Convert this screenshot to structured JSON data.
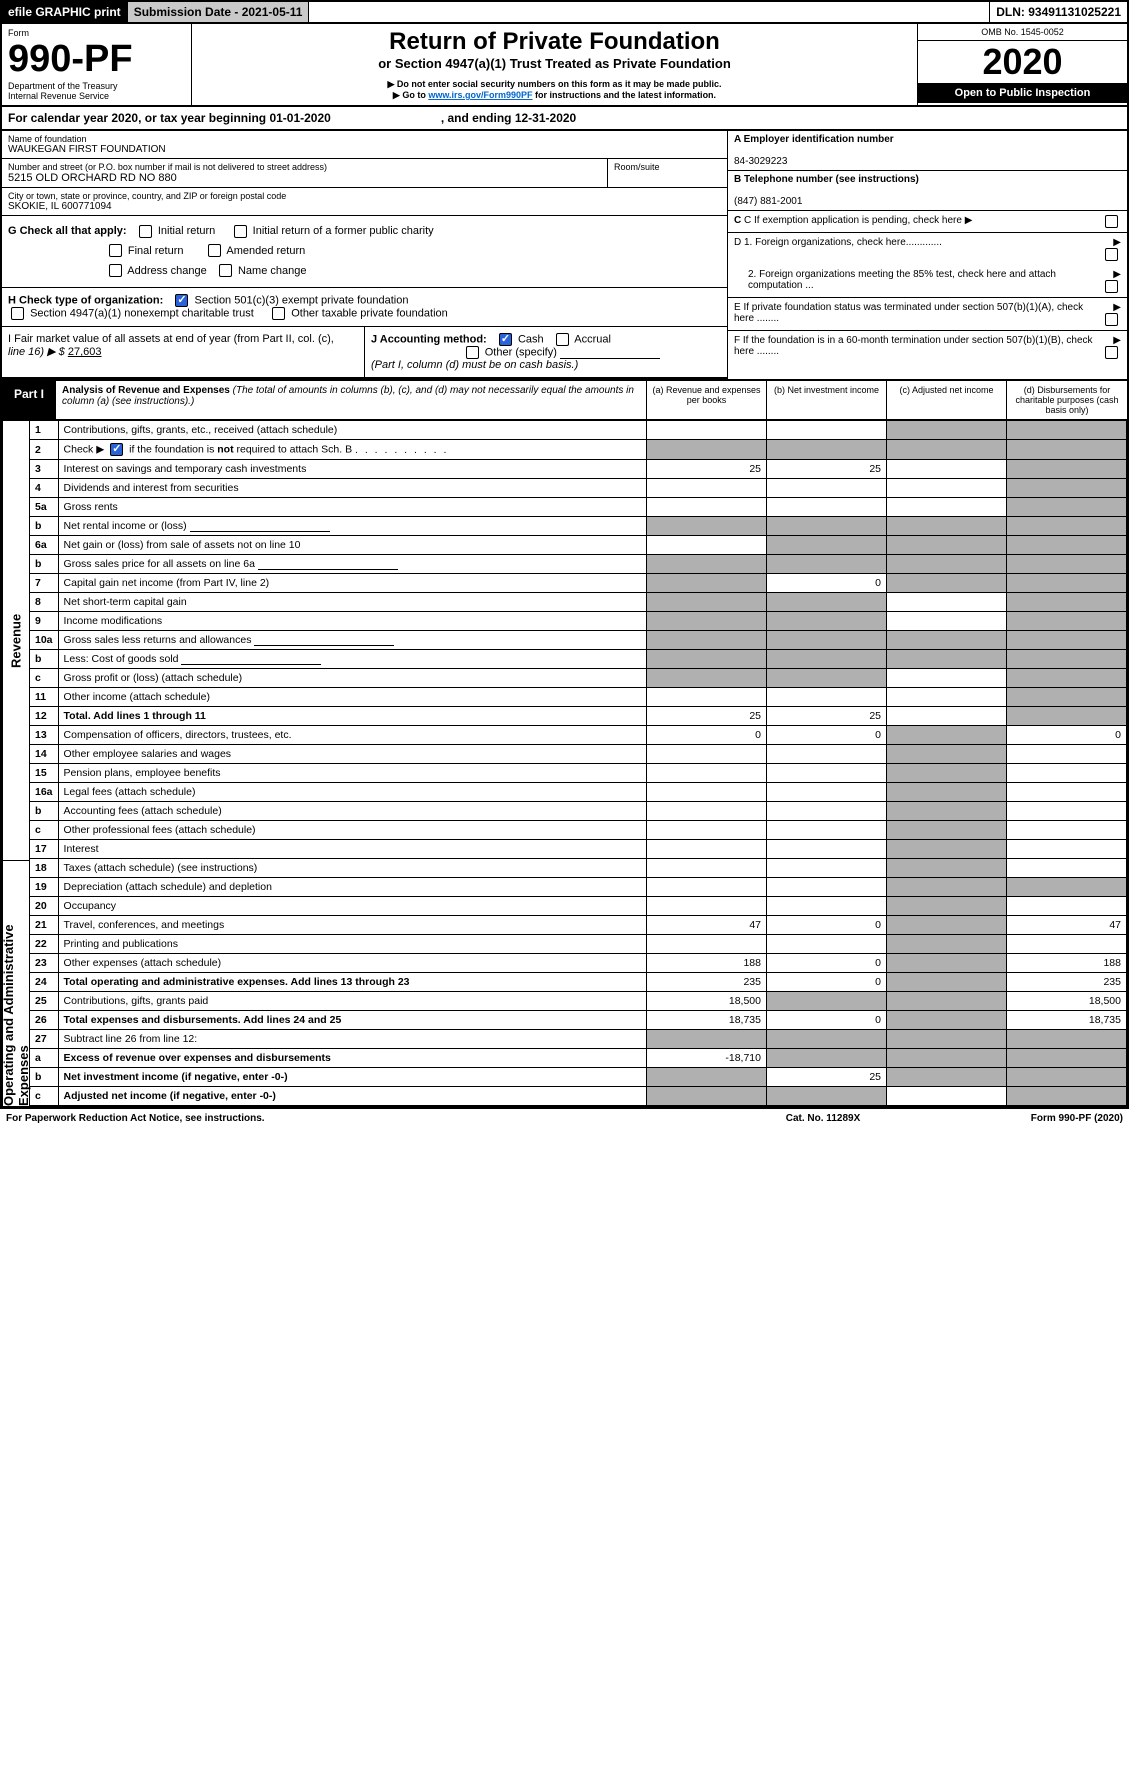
{
  "topbar": {
    "efile": "efile GRAPHIC print",
    "submission_label": "Submission Date - 2021-05-11",
    "dln": "DLN: 93491131025221"
  },
  "header": {
    "form_word": "Form",
    "form_no": "990-PF",
    "dept": "Department of the Treasury",
    "irs": "Internal Revenue Service",
    "title": "Return of Private Foundation",
    "subtitle": "or Section 4947(a)(1) Trust Treated as Private Foundation",
    "note1": "▶ Do not enter social security numbers on this form as it may be made public.",
    "note2_pre": "▶ Go to ",
    "note2_link": "www.irs.gov/Form990PF",
    "note2_post": " for instructions and the latest information.",
    "omb": "OMB No. 1545-0052",
    "year": "2020",
    "openpub": "Open to Public Inspection"
  },
  "calyear": {
    "text": "For calendar year 2020, or tax year beginning 01-01-2020",
    "ending": ", and ending 12-31-2020"
  },
  "info": {
    "name_label": "Name of foundation",
    "name": "WAUKEGAN FIRST FOUNDATION",
    "addr_label": "Number and street (or P.O. box number if mail is not delivered to street address)",
    "addr": "5215 OLD ORCHARD RD NO 880",
    "room_label": "Room/suite",
    "city_label": "City or town, state or province, country, and ZIP or foreign postal code",
    "city": "SKOKIE, IL  600771094",
    "a_label": "A Employer identification number",
    "a_val": "84-3029223",
    "b_label": "B Telephone number (see instructions)",
    "b_val": "(847) 881-2001",
    "c_label": "C  If exemption application is pending, check here",
    "d1": "D 1. Foreign organizations, check here.............",
    "d2": "2. Foreign organizations meeting the 85% test, check here and attach computation ...",
    "e": "E  If private foundation status was terminated under section 507(b)(1)(A), check here ........",
    "f": "F  If the foundation is in a 60-month termination under section 507(b)(1)(B), check here ........"
  },
  "g": {
    "label": "G Check all that apply:",
    "initial": "Initial return",
    "initial_former": "Initial return of a former public charity",
    "final": "Final return",
    "amended": "Amended return",
    "address": "Address change",
    "name": "Name change"
  },
  "h": {
    "label": "H Check type of organization:",
    "opt1": "Section 501(c)(3) exempt private foundation",
    "opt2": "Section 4947(a)(1) nonexempt charitable trust",
    "opt3": "Other taxable private foundation"
  },
  "i": {
    "label": "I Fair market value of all assets at end of year (from Part II, col. (c),",
    "line16": "line 16) ▶ $",
    "val": "27,603"
  },
  "j": {
    "label": "J Accounting method:",
    "cash": "Cash",
    "accrual": "Accrual",
    "other": "Other (specify)",
    "note": "(Part I, column (d) must be on cash basis.)"
  },
  "part1": {
    "label": "Part I",
    "title": "Analysis of Revenue and Expenses",
    "note": "(The total of amounts in columns (b), (c), and (d) may not necessarily equal the amounts in column (a) (see instructions).)",
    "col_a": "(a) Revenue and expenses per books",
    "col_b": "(b) Net investment income",
    "col_c": "(c) Adjusted net income",
    "col_d": "(d) Disbursements for charitable purposes (cash basis only)"
  },
  "side": {
    "revenue": "Revenue",
    "opex": "Operating and Administrative Expenses"
  },
  "rows": [
    {
      "n": "1",
      "d": "Contributions, gifts, grants, etc., received (attach schedule)",
      "a": "",
      "b": "",
      "c": "s",
      "dd": "s"
    },
    {
      "n": "2",
      "d": "Check ▶ ☑ if the foundation is not required to attach Sch. B",
      "a": "s",
      "b": "s",
      "c": "s",
      "dd": "s",
      "checked": true
    },
    {
      "n": "3",
      "d": "Interest on savings and temporary cash investments",
      "a": "25",
      "b": "25",
      "c": "",
      "dd": "s"
    },
    {
      "n": "4",
      "d": "Dividends and interest from securities",
      "a": "",
      "b": "",
      "c": "",
      "dd": "s"
    },
    {
      "n": "5a",
      "d": "Gross rents",
      "a": "",
      "b": "",
      "c": "",
      "dd": "s"
    },
    {
      "n": "b",
      "d": "Net rental income or (loss)",
      "a": "s",
      "b": "s",
      "c": "s",
      "dd": "s",
      "uline": true
    },
    {
      "n": "6a",
      "d": "Net gain or (loss) from sale of assets not on line 10",
      "a": "",
      "b": "s",
      "c": "s",
      "dd": "s"
    },
    {
      "n": "b",
      "d": "Gross sales price for all assets on line 6a",
      "a": "s",
      "b": "s",
      "c": "s",
      "dd": "s",
      "uline": true
    },
    {
      "n": "7",
      "d": "Capital gain net income (from Part IV, line 2)",
      "a": "s",
      "b": "0",
      "c": "s",
      "dd": "s"
    },
    {
      "n": "8",
      "d": "Net short-term capital gain",
      "a": "s",
      "b": "s",
      "c": "",
      "dd": "s"
    },
    {
      "n": "9",
      "d": "Income modifications",
      "a": "s",
      "b": "s",
      "c": "",
      "dd": "s"
    },
    {
      "n": "10a",
      "d": "Gross sales less returns and allowances",
      "a": "s",
      "b": "s",
      "c": "s",
      "dd": "s",
      "uline": true
    },
    {
      "n": "b",
      "d": "Less: Cost of goods sold",
      "a": "s",
      "b": "s",
      "c": "s",
      "dd": "s",
      "uline": true
    },
    {
      "n": "c",
      "d": "Gross profit or (loss) (attach schedule)",
      "a": "s",
      "b": "s",
      "c": "",
      "dd": "s"
    },
    {
      "n": "11",
      "d": "Other income (attach schedule)",
      "a": "",
      "b": "",
      "c": "",
      "dd": "s"
    },
    {
      "n": "12",
      "d": "Total. Add lines 1 through 11",
      "a": "25",
      "b": "25",
      "c": "",
      "dd": "s",
      "bold": true
    },
    {
      "n": "13",
      "d": "Compensation of officers, directors, trustees, etc.",
      "a": "0",
      "b": "0",
      "c": "s",
      "dd": "0"
    },
    {
      "n": "14",
      "d": "Other employee salaries and wages",
      "a": "",
      "b": "",
      "c": "s",
      "dd": ""
    },
    {
      "n": "15",
      "d": "Pension plans, employee benefits",
      "a": "",
      "b": "",
      "c": "s",
      "dd": ""
    },
    {
      "n": "16a",
      "d": "Legal fees (attach schedule)",
      "a": "",
      "b": "",
      "c": "s",
      "dd": ""
    },
    {
      "n": "b",
      "d": "Accounting fees (attach schedule)",
      "a": "",
      "b": "",
      "c": "s",
      "dd": ""
    },
    {
      "n": "c",
      "d": "Other professional fees (attach schedule)",
      "a": "",
      "b": "",
      "c": "s",
      "dd": ""
    },
    {
      "n": "17",
      "d": "Interest",
      "a": "",
      "b": "",
      "c": "s",
      "dd": ""
    },
    {
      "n": "18",
      "d": "Taxes (attach schedule) (see instructions)",
      "a": "",
      "b": "",
      "c": "s",
      "dd": ""
    },
    {
      "n": "19",
      "d": "Depreciation (attach schedule) and depletion",
      "a": "",
      "b": "",
      "c": "s",
      "dd": "s"
    },
    {
      "n": "20",
      "d": "Occupancy",
      "a": "",
      "b": "",
      "c": "s",
      "dd": ""
    },
    {
      "n": "21",
      "d": "Travel, conferences, and meetings",
      "a": "47",
      "b": "0",
      "c": "s",
      "dd": "47"
    },
    {
      "n": "22",
      "d": "Printing and publications",
      "a": "",
      "b": "",
      "c": "s",
      "dd": ""
    },
    {
      "n": "23",
      "d": "Other expenses (attach schedule)",
      "a": "188",
      "b": "0",
      "c": "s",
      "dd": "188"
    },
    {
      "n": "24",
      "d": "Total operating and administrative expenses. Add lines 13 through 23",
      "a": "235",
      "b": "0",
      "c": "s",
      "dd": "235",
      "bold": true
    },
    {
      "n": "25",
      "d": "Contributions, gifts, grants paid",
      "a": "18,500",
      "b": "s",
      "c": "s",
      "dd": "18,500"
    },
    {
      "n": "26",
      "d": "Total expenses and disbursements. Add lines 24 and 25",
      "a": "18,735",
      "b": "0",
      "c": "s",
      "dd": "18,735",
      "bold": true
    },
    {
      "n": "27",
      "d": "Subtract line 26 from line 12:",
      "a": "s",
      "b": "s",
      "c": "s",
      "dd": "s"
    },
    {
      "n": "a",
      "d": "Excess of revenue over expenses and disbursements",
      "a": "-18,710",
      "b": "s",
      "c": "s",
      "dd": "s",
      "bold": true
    },
    {
      "n": "b",
      "d": "Net investment income (if negative, enter -0-)",
      "a": "s",
      "b": "25",
      "c": "s",
      "dd": "s",
      "bold": true
    },
    {
      "n": "c",
      "d": "Adjusted net income (if negative, enter -0-)",
      "a": "s",
      "b": "s",
      "c": "",
      "dd": "s",
      "bold": true
    }
  ],
  "footer": {
    "left": "For Paperwork Reduction Act Notice, see instructions.",
    "mid": "Cat. No. 11289X",
    "right": "Form 990-PF (2020)"
  }
}
